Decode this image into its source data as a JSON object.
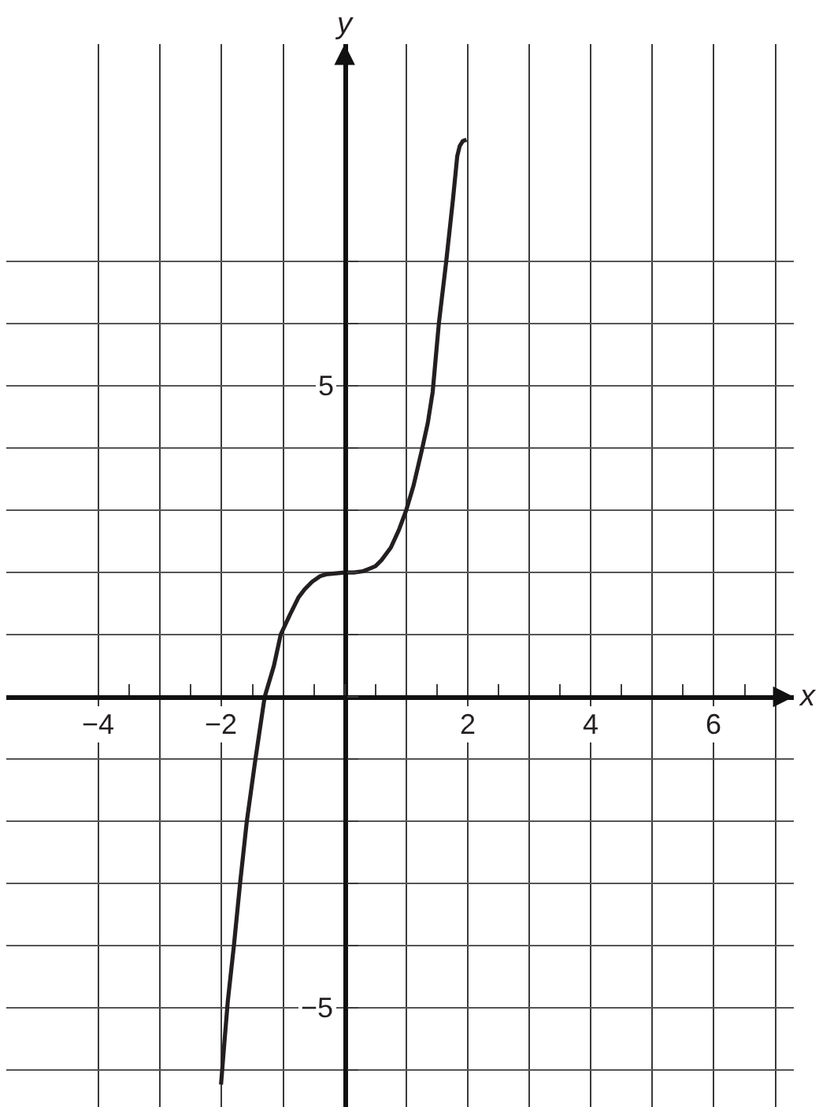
{
  "chart_data": {
    "type": "line",
    "xlabel": "x",
    "ylabel": "y",
    "x": [
      -2.01,
      -1.95,
      -1.9,
      -1.8,
      -1.7,
      -1.59,
      -1.45,
      -1.3,
      -1.15,
      -1.04,
      -0.9,
      -0.75,
      -0.65,
      -0.53,
      -0.4,
      -0.3,
      0,
      0.15,
      0.3,
      0.4,
      0.5,
      0.6,
      0.75,
      0.88,
      1,
      1.12,
      1.25,
      1.35,
      1.43,
      1.53,
      1.65,
      1.76,
      1.83,
      1.87,
      1.92,
      1.98
    ],
    "series": [
      {
        "color": "#231f20",
        "values": [
          -6.24,
          -5.5,
          -4.9,
          -4.0,
          -3.0,
          -2.0,
          -1.0,
          0,
          0.5,
          1.0,
          1.3,
          1.6,
          1.73,
          1.85,
          1.94,
          1.97,
          2,
          2.0,
          2.02,
          2.06,
          2.1,
          2.2,
          2.4,
          2.68,
          3,
          3.4,
          3.95,
          4.4,
          4.9,
          6,
          7,
          8,
          8.7,
          8.86,
          8.94,
          8.96
        ]
      }
    ],
    "xlim": [
      -5.5,
      7.3
    ],
    "ylim": [
      -6.6,
      10.5
    ],
    "xticks": [
      {
        "value": -4,
        "label": "−4"
      },
      {
        "value": -3,
        "label": null
      },
      {
        "value": -2,
        "label": "−2"
      },
      {
        "value": -1,
        "label": null
      },
      {
        "value": 0,
        "label": null
      },
      {
        "value": 1,
        "label": null
      },
      2,
      {
        "value": 3,
        "label": null
      },
      4,
      {
        "value": 5,
        "label": null
      },
      6,
      {
        "value": 7,
        "label": null
      }
    ],
    "yticks": [
      {
        "value": -6,
        "label": null
      },
      {
        "value": -5,
        "label": "−5"
      },
      {
        "value": -4,
        "label": null
      },
      {
        "value": -3,
        "label": null
      },
      {
        "value": -2,
        "label": null
      },
      {
        "value": -1,
        "label": null
      },
      {
        "value": 0,
        "label": null
      },
      {
        "value": 1,
        "label": null
      },
      {
        "value": 2,
        "label": null
      },
      {
        "value": 3,
        "label": null
      },
      {
        "value": 4,
        "label": null
      },
      5,
      {
        "value": 6,
        "label": null
      },
      {
        "value": 7,
        "label": null
      }
    ],
    "grid": true,
    "line_style": "solid"
  }
}
